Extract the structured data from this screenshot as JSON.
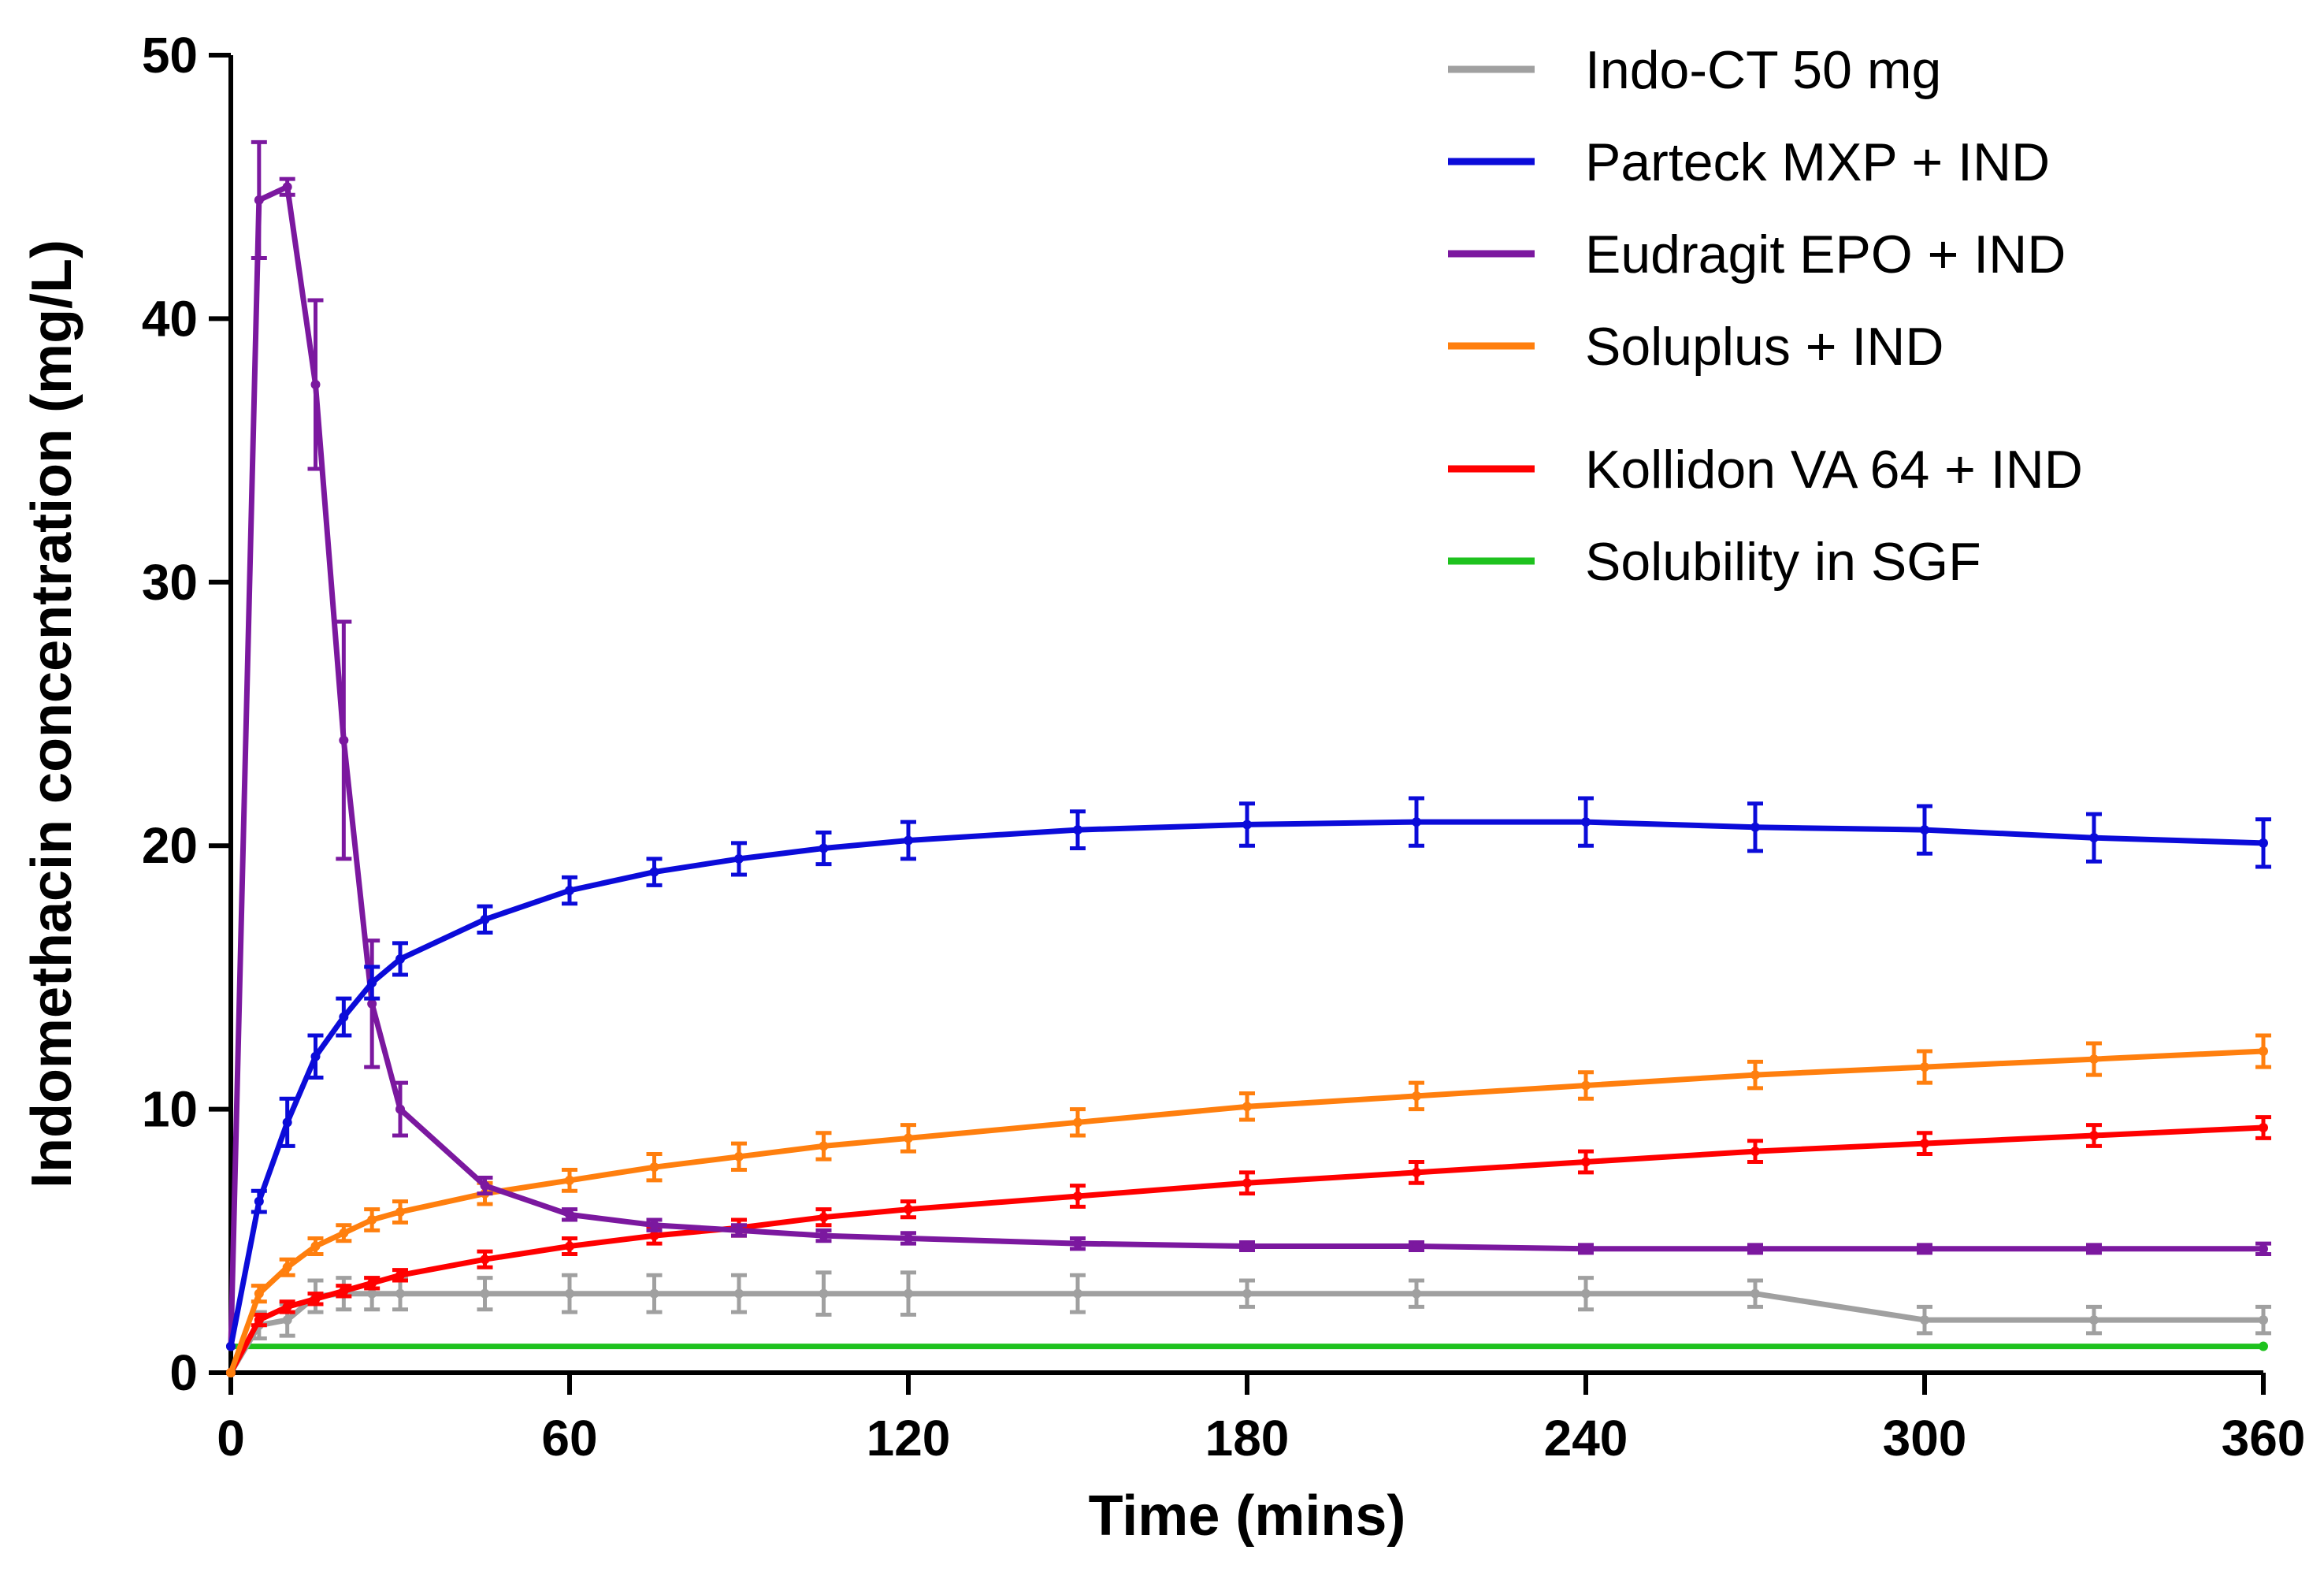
{
  "chart_data": {
    "type": "line",
    "title": "",
    "xlabel": "Time (mins)",
    "ylabel": "Indomethacin concentration (mg/L)",
    "xlim": [
      0,
      360
    ],
    "ylim": [
      0,
      50
    ],
    "xticks": [
      0,
      60,
      120,
      180,
      240,
      300,
      360
    ],
    "yticks": [
      0,
      10,
      20,
      30,
      40,
      50
    ],
    "grid": false,
    "legend_position": "top-right",
    "series": [
      {
        "name": "Indo-CT 50 mg",
        "color": "#a0a0a0",
        "x": [
          0,
          5,
          10,
          15,
          20,
          25,
          30,
          45,
          60,
          75,
          90,
          105,
          120,
          150,
          180,
          210,
          240,
          270,
          300,
          330,
          360
        ],
        "y": [
          0,
          1.8,
          2.0,
          2.9,
          3.0,
          3.0,
          3.0,
          3.0,
          3.0,
          3.0,
          3.0,
          3.0,
          3.0,
          3.0,
          3.0,
          3.0,
          3.0,
          3.0,
          2.0,
          2.0,
          2.0
        ],
        "err": [
          0,
          0.5,
          0.6,
          0.6,
          0.6,
          0.6,
          0.6,
          0.6,
          0.7,
          0.7,
          0.7,
          0.8,
          0.8,
          0.7,
          0.5,
          0.5,
          0.6,
          0.5,
          0.5,
          0.5,
          0.5
        ]
      },
      {
        "name": "Parteck MXP + IND",
        "color": "#0b0bd9",
        "x": [
          0,
          5,
          10,
          15,
          20,
          25,
          30,
          45,
          60,
          75,
          90,
          105,
          120,
          150,
          180,
          210,
          240,
          270,
          300,
          330,
          360
        ],
        "y": [
          1,
          6.5,
          9.5,
          12.0,
          13.5,
          14.8,
          15.7,
          17.2,
          18.3,
          19.0,
          19.5,
          19.9,
          20.2,
          20.6,
          20.8,
          20.9,
          20.9,
          20.7,
          20.6,
          20.3,
          20.1
        ],
        "err": [
          0,
          0.4,
          0.9,
          0.8,
          0.7,
          0.6,
          0.6,
          0.5,
          0.5,
          0.5,
          0.6,
          0.6,
          0.7,
          0.7,
          0.8,
          0.9,
          0.9,
          0.9,
          0.9,
          0.9,
          0.9
        ]
      },
      {
        "name": "Eudragit EPO + IND",
        "color": "#7b189f",
        "x": [
          0,
          5,
          10,
          15,
          20,
          25,
          30,
          45,
          60,
          75,
          90,
          105,
          120,
          150,
          180,
          210,
          240,
          270,
          300,
          330,
          360
        ],
        "y": [
          1,
          44.5,
          45.0,
          37.5,
          24.0,
          14.0,
          10.0,
          7.1,
          6.0,
          5.6,
          5.4,
          5.2,
          5.1,
          4.9,
          4.8,
          4.8,
          4.7,
          4.7,
          4.7,
          4.7,
          4.7
        ],
        "err": [
          0,
          2.2,
          0.3,
          3.2,
          4.5,
          2.4,
          1.0,
          0.3,
          0.2,
          0.2,
          0.2,
          0.2,
          0.2,
          0.2,
          0.15,
          0.15,
          0.15,
          0.15,
          0.15,
          0.15,
          0.2
        ]
      },
      {
        "name": "Soluplus + IND",
        "color": "#ff7f0e",
        "x": [
          0,
          5,
          10,
          15,
          20,
          25,
          30,
          45,
          60,
          75,
          90,
          105,
          120,
          150,
          180,
          210,
          240,
          270,
          300,
          330,
          360
        ],
        "y": [
          0,
          3.0,
          4.0,
          4.8,
          5.3,
          5.8,
          6.1,
          6.8,
          7.3,
          7.8,
          8.2,
          8.6,
          8.9,
          9.5,
          10.1,
          10.5,
          10.9,
          11.3,
          11.6,
          11.9,
          12.2
        ],
        "err": [
          0,
          0.3,
          0.3,
          0.3,
          0.3,
          0.4,
          0.4,
          0.4,
          0.4,
          0.5,
          0.5,
          0.5,
          0.5,
          0.5,
          0.5,
          0.5,
          0.5,
          0.5,
          0.6,
          0.6,
          0.6
        ]
      },
      {
        "name": "Kollidon VA 64 + IND",
        "color": "#ff0000",
        "x": [
          0,
          5,
          10,
          15,
          20,
          25,
          30,
          45,
          60,
          75,
          90,
          105,
          120,
          150,
          180,
          210,
          240,
          270,
          300,
          330,
          360
        ],
        "y": [
          0,
          2.0,
          2.5,
          2.8,
          3.1,
          3.4,
          3.7,
          4.3,
          4.8,
          5.2,
          5.5,
          5.9,
          6.2,
          6.7,
          7.2,
          7.6,
          8.0,
          8.4,
          8.7,
          9.0,
          9.3
        ],
        "err": [
          0,
          0.2,
          0.2,
          0.2,
          0.2,
          0.2,
          0.2,
          0.3,
          0.3,
          0.3,
          0.3,
          0.3,
          0.3,
          0.4,
          0.4,
          0.4,
          0.4,
          0.4,
          0.4,
          0.4,
          0.4
        ]
      },
      {
        "name": "Solubility in SGF",
        "color": "#1ec21e",
        "x": [
          0,
          360
        ],
        "y": [
          1.0,
          1.0
        ],
        "err": [
          0,
          0
        ]
      }
    ]
  }
}
